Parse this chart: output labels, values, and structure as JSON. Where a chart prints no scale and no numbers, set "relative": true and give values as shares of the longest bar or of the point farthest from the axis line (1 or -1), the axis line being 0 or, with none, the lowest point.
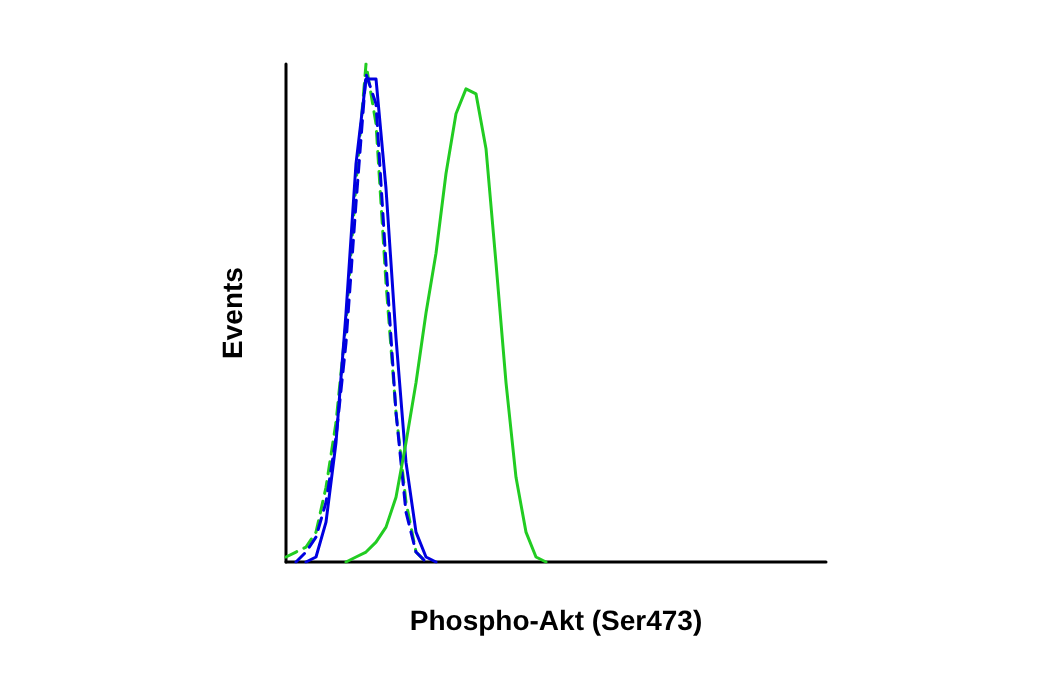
{
  "chart_data": {
    "type": "line",
    "relative": true,
    "xlabel": "Phospho-Akt (Ser473)",
    "ylabel": "Events",
    "marker": "none",
    "grid": false,
    "categories": [
      null,
      null,
      null,
      null,
      null,
      null,
      null,
      null,
      null,
      null,
      null,
      null,
      null,
      null,
      null,
      null,
      null,
      null,
      null,
      null,
      null,
      null,
      null,
      null,
      null,
      null,
      null,
      null,
      null,
      null,
      null,
      null,
      null,
      null,
      null,
      null,
      null,
      null,
      null,
      null,
      null,
      null,
      null,
      null,
      null,
      null,
      null,
      null,
      null,
      null,
      null,
      null,
      null,
      null,
      null
    ],
    "series": [
      {
        "color": "#22cc22",
        "line_style": "dashed",
        "values": [
          0.01,
          0.02,
          0.03,
          0.06,
          0.15,
          0.28,
          0.48,
          0.76,
          1.0,
          0.88,
          0.56,
          0.3,
          0.12,
          0.02,
          0,
          null,
          null,
          null,
          null,
          null,
          null,
          null,
          null,
          null,
          null,
          null,
          null,
          null,
          null,
          null,
          null,
          null,
          null,
          null,
          null,
          null,
          null,
          null,
          null,
          null,
          null,
          null,
          null,
          null,
          null,
          null,
          null,
          null,
          null,
          null,
          null,
          null,
          null,
          null,
          null
        ]
      },
      {
        "color": "#0000e0",
        "line_style": "dashed",
        "values": [
          null,
          0,
          0.02,
          0.05,
          0.12,
          0.25,
          0.44,
          0.72,
          0.98,
          0.92,
          0.6,
          0.3,
          0.1,
          0.02,
          0,
          null,
          null,
          null,
          null,
          null,
          null,
          null,
          null,
          null,
          null,
          null,
          null,
          null,
          null,
          null,
          null,
          null,
          null,
          null,
          null,
          null,
          null,
          null,
          null,
          null,
          null,
          null,
          null,
          null,
          null,
          null,
          null,
          null,
          null,
          null,
          null,
          null,
          null,
          null,
          null
        ]
      },
      {
        "color": "#0000e0",
        "line_style": "solid",
        "values": [
          null,
          null,
          0,
          0.01,
          0.08,
          0.24,
          0.5,
          0.8,
          0.97,
          0.97,
          0.75,
          0.45,
          0.2,
          0.06,
          0.01,
          0,
          null,
          null,
          null,
          null,
          null,
          null,
          null,
          null,
          null,
          null,
          null,
          null,
          null,
          null,
          null,
          null,
          null,
          null,
          null,
          null,
          null,
          null,
          null,
          null,
          null,
          null,
          null,
          null,
          null,
          null,
          null,
          null,
          null,
          null,
          null,
          null,
          null,
          null,
          null
        ]
      },
      {
        "color": "#22cc22",
        "line_style": "solid",
        "values": [
          null,
          null,
          null,
          null,
          null,
          null,
          0,
          0.01,
          0.02,
          0.04,
          0.07,
          0.13,
          0.24,
          0.36,
          0.5,
          0.62,
          0.78,
          0.9,
          0.95,
          0.94,
          0.83,
          0.6,
          0.36,
          0.17,
          0.06,
          0.01,
          0,
          null,
          null,
          null,
          null,
          null,
          null,
          null,
          null,
          null,
          null,
          null,
          null,
          null,
          null,
          null,
          null,
          null,
          null,
          null,
          null,
          null,
          null,
          null,
          null,
          null,
          null,
          null,
          null
        ]
      }
    ]
  }
}
